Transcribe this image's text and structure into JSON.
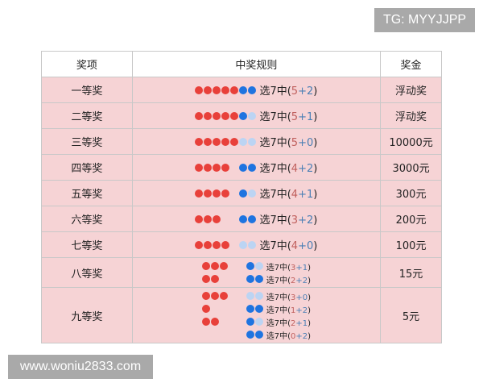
{
  "watermark_top": "TG: MYYJJPP",
  "watermark_bottom": "www.woniu2833.com",
  "colors": {
    "red": "#e8403a",
    "light_red": "#f6d3d5",
    "blue": "#1f74e0",
    "light_blue": "#bcd4f3"
  },
  "table": {
    "headers": [
      "奖项",
      "中奖规则",
      "奖金"
    ],
    "rows": [
      {
        "level": "一等奖",
        "prize": "浮动奖",
        "rules": [
          {
            "balls": "RRRRRBB",
            "prefix": "选7中(",
            "a": "5",
            "plus": "+",
            "b": "2",
            "suffix": ")"
          }
        ]
      },
      {
        "level": "二等奖",
        "prize": "浮动奖",
        "rules": [
          {
            "balls": "RRRRRBb",
            "prefix": "选7中(",
            "a": "5",
            "plus": "+",
            "b": "1",
            "suffix": ")"
          }
        ]
      },
      {
        "level": "三等奖",
        "prize": "10000元",
        "rules": [
          {
            "balls": "RRRRRbb",
            "prefix": "选7中(",
            "a": "5",
            "plus": "+",
            "b": "0",
            "suffix": ")"
          }
        ]
      },
      {
        "level": "四等奖",
        "prize": "3000元",
        "rules": [
          {
            "balls": "RRRRrBB",
            "prefix": "选7中(",
            "a": "4",
            "plus": "+",
            "b": "2",
            "suffix": ")"
          }
        ]
      },
      {
        "level": "五等奖",
        "prize": "300元",
        "rules": [
          {
            "balls": "RRRRrBb",
            "prefix": "选7中(",
            "a": "4",
            "plus": "+",
            "b": "1",
            "suffix": ")"
          }
        ]
      },
      {
        "level": "六等奖",
        "prize": "200元",
        "rules": [
          {
            "balls": "RRRrrBB",
            "prefix": "选7中(",
            "a": "3",
            "plus": "+",
            "b": "2",
            "suffix": ")"
          }
        ]
      },
      {
        "level": "七等奖",
        "prize": "100元",
        "rules": [
          {
            "balls": "RRRRrbb",
            "prefix": "选7中(",
            "a": "4",
            "plus": "+",
            "b": "0",
            "suffix": ")"
          }
        ]
      },
      {
        "level": "八等奖",
        "prize": "15元",
        "rules": [
          {
            "balls": "RRRrrBb",
            "prefix": "选7中(",
            "a": "3",
            "plus": "+",
            "b": "1",
            "suffix": ")"
          },
          {
            "balls": "RRrrrBB",
            "prefix": "选7中(",
            "a": "2",
            "plus": "+",
            "b": "2",
            "suffix": ")"
          }
        ]
      },
      {
        "level": "九等奖",
        "prize": "5元",
        "rules": [
          {
            "balls": "RRRrrbb",
            "prefix": "选7中(",
            "a": "3",
            "plus": "+",
            "b": "0",
            "suffix": ")"
          },
          {
            "balls": "RrrrrBB",
            "prefix": "选7中(",
            "a": "1",
            "plus": "+",
            "b": "2",
            "suffix": ")"
          },
          {
            "balls": "RRrrrBb",
            "prefix": "选7中(",
            "a": "2",
            "plus": "+",
            "b": "1",
            "suffix": ")"
          },
          {
            "balls": "rrrrrBB",
            "prefix": "选7中(",
            "a": "0",
            "plus": "+",
            "b": "2",
            "suffix": ")"
          }
        ]
      }
    ]
  }
}
